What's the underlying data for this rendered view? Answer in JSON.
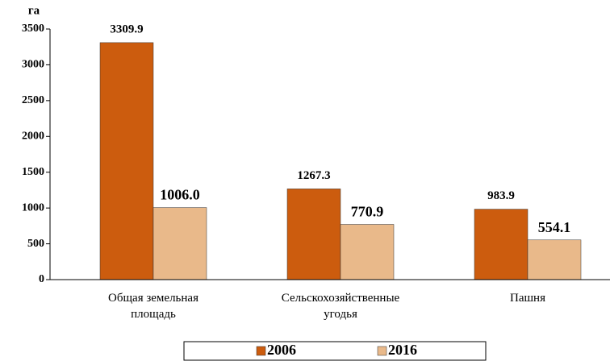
{
  "chart_data": {
    "type": "bar",
    "y_label": "га",
    "categories": [
      "Общая земельная площадь",
      "Сельскохозяйственные угодья",
      "Пашня"
    ],
    "series": [
      {
        "name": "2006",
        "color": "#cc5c0e",
        "values": [
          3309.9,
          1267.3,
          983.9
        ],
        "value_labels": [
          "3309.9",
          "1267.3",
          "983.9"
        ]
      },
      {
        "name": "2016",
        "color": "#e9b98a",
        "values": [
          1006.0,
          770.9,
          554.1
        ],
        "value_labels": [
          "1006.0",
          "770.9",
          "554.1"
        ]
      }
    ],
    "ylim": [
      0,
      3500
    ],
    "yticks": [
      0,
      500,
      1000,
      1500,
      2000,
      2500,
      3000,
      3500
    ]
  }
}
